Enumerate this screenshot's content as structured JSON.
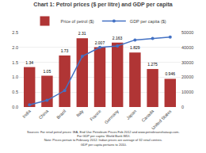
{
  "chart_data": {
    "type": "bar",
    "title": "Chart 1: Petrol prices ($ per litre) and GDP per capita",
    "categories": [
      "India",
      "China",
      "Brazil",
      "Italy",
      "France",
      "Germany",
      "Japan",
      "Canada",
      "United States"
    ],
    "series": [
      {
        "name": "Price of petrol ($)",
        "type": "bar",
        "color": "#b03535",
        "values": [
          1.34,
          1.05,
          1.73,
          2.31,
          2.007,
          2.163,
          1.829,
          1.275,
          0.946
        ],
        "data_labels": true
      },
      {
        "name": "GDP per capita ($)",
        "type": "line",
        "axis": "y2",
        "color": "#4472c4",
        "marker": "o",
        "values": [
          1500,
          4500,
          11000,
          34000,
          40000,
          41000,
          45000,
          46000,
          47000
        ]
      }
    ],
    "ylim": [
      0,
      2.5
    ],
    "yticks": [
      {
        "value": 0,
        "label": "0.0"
      },
      {
        "value": 0.5,
        "label": "0.5"
      },
      {
        "value": 1.0,
        "label": "1.0"
      },
      {
        "value": 1.5,
        "label": "1.5"
      },
      {
        "value": 2.0,
        "label": "2.0"
      },
      {
        "value": 2.5,
        "label": "2.5"
      }
    ],
    "y2lim": [
      0,
      50000
    ],
    "y2ticks": [
      0,
      10000,
      20000,
      30000,
      40000,
      50000
    ],
    "grid": true,
    "legend": "top",
    "annotations": [
      "Sources: For retail petrol prices: IEA, End Use Petroleum Prices Feb 2012 and www.petrolesanshataup.com.\n For GDP per capita: World Bank WDI.\nNote: Prices pertain to February 2012. Indian prices are average of 32 retail centres.\n GDP per capita pertains to 2010."
    ]
  }
}
